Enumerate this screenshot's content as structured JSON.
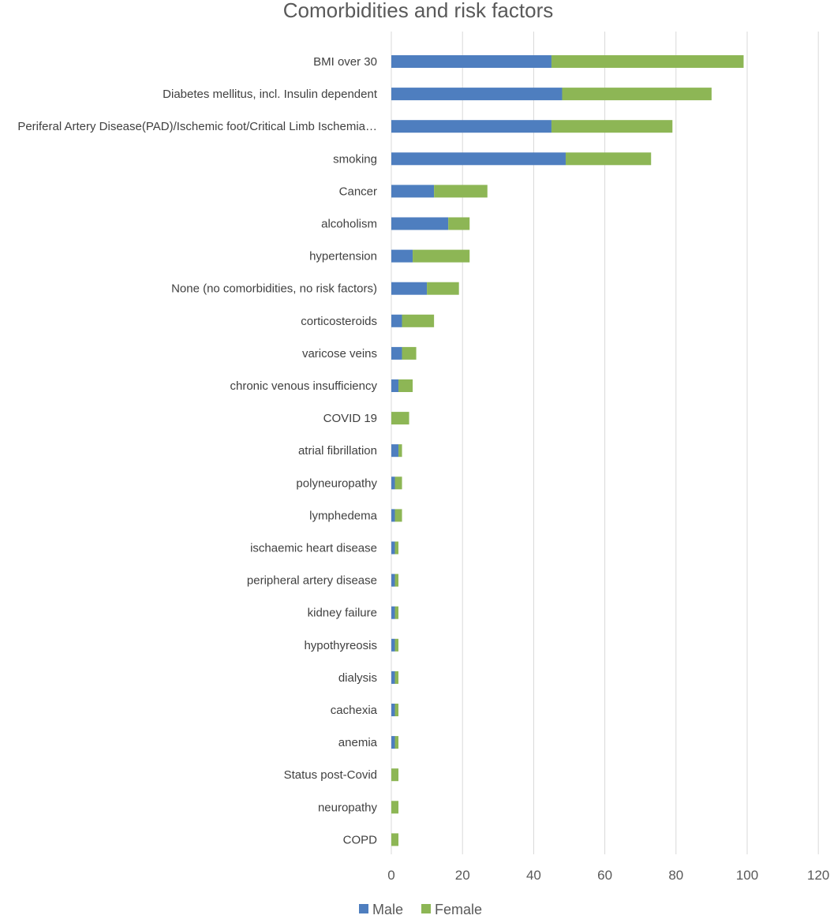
{
  "colors": {
    "male": "#4E7EBF",
    "female": "#8DB655",
    "grid": "#d9d9d9",
    "text": "#404040"
  },
  "chart_data": {
    "type": "bar",
    "orientation": "horizontal",
    "stacked": true,
    "title": "Comorbidities and risk factors",
    "xlabel": "",
    "ylabel": "",
    "xlim": [
      0,
      120
    ],
    "xticks": [
      0,
      20,
      40,
      60,
      80,
      100,
      120
    ],
    "grid": "vertical",
    "legend": "bottom",
    "categories": [
      "BMI over 30",
      "Diabetes mellitus, incl. Insulin dependent",
      "Periferal Artery Disease(PAD)/Ischemic foot/Critical Limb Ischemia…",
      "smoking",
      "Cancer",
      "alcoholism",
      "hypertension",
      "None (no comorbidities, no risk factors)",
      "corticosteroids",
      "varicose veins",
      "chronic venous insufficiency",
      "COVID 19",
      "atrial fibrillation",
      "polyneuropathy",
      "lymphedema",
      "ischaemic heart disease",
      "peripheral artery disease",
      "kidney failure",
      "hypothyreosis",
      "dialysis",
      "cachexia",
      "anemia",
      "Status post-Covid",
      "neuropathy",
      "COPD"
    ],
    "series": [
      {
        "name": "Male",
        "color": "#4E7EBF",
        "values": [
          45,
          48,
          45,
          49,
          12,
          16,
          6,
          10,
          3,
          3,
          2,
          0,
          2,
          1,
          1,
          1,
          1,
          1,
          1,
          1,
          1,
          1,
          0,
          0,
          0
        ]
      },
      {
        "name": "Female",
        "color": "#8DB655",
        "values": [
          54,
          42,
          34,
          24,
          15,
          6,
          16,
          9,
          9,
          4,
          4,
          5,
          1,
          2,
          2,
          1,
          1,
          1,
          1,
          1,
          1,
          1,
          2,
          2,
          2
        ]
      }
    ]
  }
}
